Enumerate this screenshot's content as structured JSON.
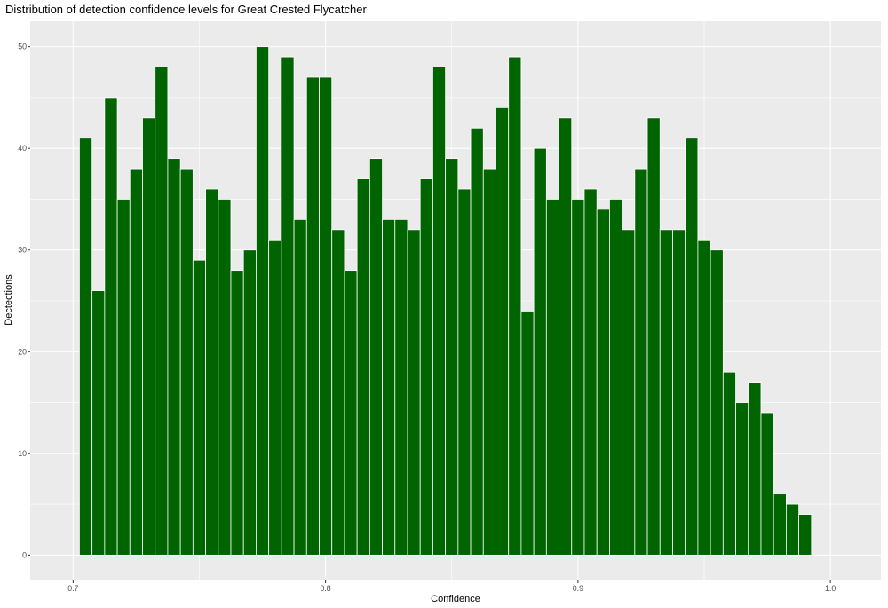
{
  "chart_data": {
    "type": "bar",
    "title": "Distribution of detection confidence levels for Great Crested Flycatcher",
    "xlabel": "Confidence",
    "ylabel": "Dectections",
    "xlim": [
      0.683,
      1.02
    ],
    "ylim": [
      -2.5,
      52.5
    ],
    "x_ticks": [
      0.7,
      0.8,
      0.9,
      1.0
    ],
    "x_tick_labels": [
      "0.7",
      "0.8",
      "0.9",
      "1.0"
    ],
    "y_ticks": [
      0,
      10,
      20,
      30,
      40,
      50
    ],
    "y_tick_labels": [
      "0",
      "10",
      "20",
      "30",
      "40",
      "50"
    ],
    "grid": true,
    "bin_width": 0.005,
    "x_start": 0.7025,
    "fill_color": "#006400",
    "outline_color": "#ffffff",
    "panel_color": "#ebebeb",
    "grid_color": "#ffffff",
    "values": [
      41,
      26,
      45,
      35,
      38,
      43,
      48,
      39,
      38,
      29,
      36,
      35,
      28,
      30,
      50,
      31,
      49,
      33,
      47,
      47,
      32,
      28,
      37,
      39,
      33,
      33,
      32,
      37,
      48,
      39,
      36,
      42,
      38,
      44,
      49,
      24,
      40,
      35,
      43,
      35,
      36,
      34,
      35,
      32,
      38,
      43,
      32,
      32,
      41,
      31,
      30,
      18,
      15,
      17,
      14,
      6,
      5,
      4
    ]
  }
}
